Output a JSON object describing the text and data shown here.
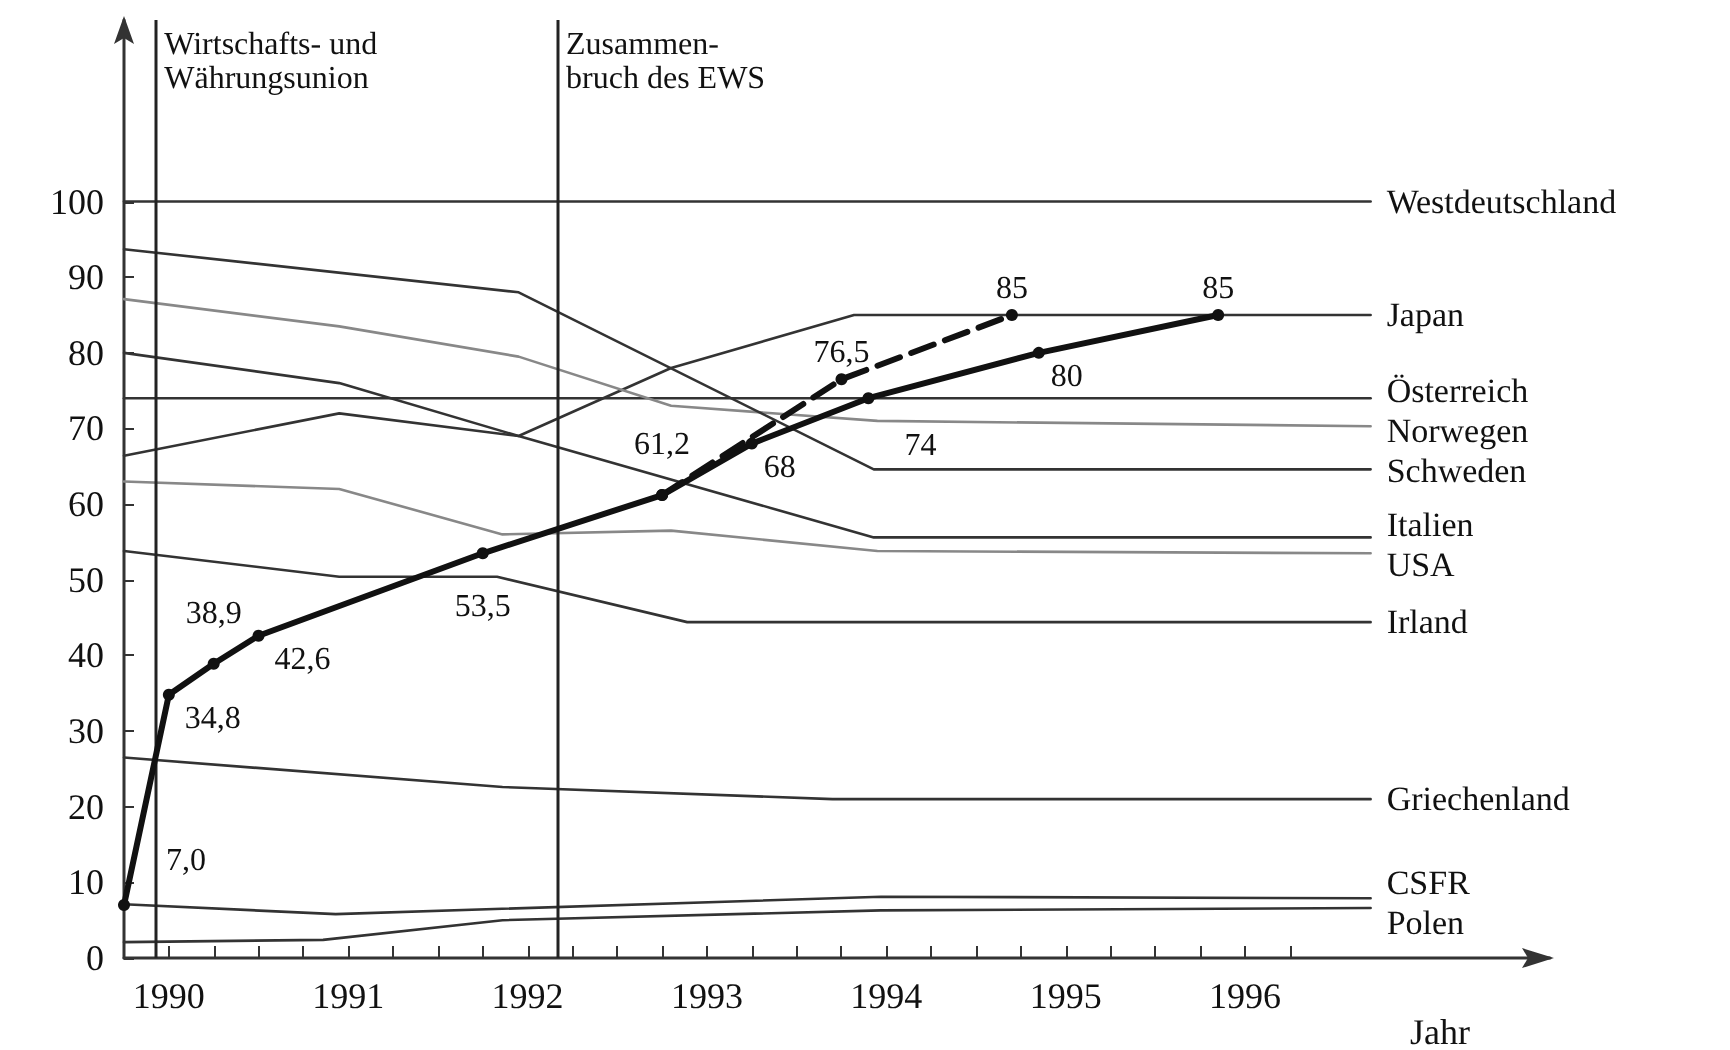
{
  "chart_data": {
    "type": "line",
    "xlabel": "Jahr",
    "xlim": [
      1990.25,
      1998.2
    ],
    "ylim": [
      0,
      124
    ],
    "yticks": [
      0,
      10,
      20,
      30,
      40,
      50,
      60,
      70,
      80,
      90,
      100
    ],
    "xticks": [
      {
        "value": 1990.5,
        "label": "1990"
      },
      {
        "value": 1990.75,
        "label": null
      },
      {
        "value": 1991,
        "label": null
      },
      {
        "value": 1991.25,
        "label": null
      },
      {
        "value": 1991.5,
        "label": "1991"
      },
      {
        "value": 1991.75,
        "label": null
      },
      {
        "value": 1992,
        "label": null
      },
      {
        "value": 1992.25,
        "label": null
      },
      {
        "value": 1992.5,
        "label": "1992"
      },
      {
        "value": 1992.75,
        "label": null
      },
      {
        "value": 1993,
        "label": null
      },
      {
        "value": 1993.25,
        "label": null
      },
      {
        "value": 1993.5,
        "label": "1993"
      },
      {
        "value": 1993.75,
        "label": null
      },
      {
        "value": 1994,
        "label": null
      },
      {
        "value": 1994.25,
        "label": null
      },
      {
        "value": 1994.5,
        "label": "1994"
      },
      {
        "value": 1994.75,
        "label": null
      },
      {
        "value": 1995,
        "label": null
      },
      {
        "value": 1995.25,
        "label": null
      },
      {
        "value": 1995.5,
        "label": "1995"
      },
      {
        "value": 1995.75,
        "label": null
      },
      {
        "value": 1996,
        "label": null
      },
      {
        "value": 1996.25,
        "label": null
      },
      {
        "value": 1996.5,
        "label": "1996"
      },
      {
        "value": 1996.75,
        "label": null
      }
    ],
    "ref_lines": [
      {
        "axis": "x",
        "value": 1990.43,
        "label": "Wirtschafts- und\nWährungsunion",
        "color": "#222222"
      },
      {
        "axis": "x",
        "value": 1992.67,
        "label": "Zusammen-\nbruch des EWS",
        "color": "#222222"
      }
    ],
    "grid": false,
    "legend": false,
    "marker": "none",
    "line_style": "solid",
    "series": [
      {
        "name": "Westdeutschland",
        "color": "#333333",
        "x": [
          1990.25,
          1997.2
        ],
        "values": [
          100,
          100
        ]
      },
      {
        "name": "Japan",
        "color": "#333333",
        "x": [
          1990.25,
          1991.45,
          1992.45,
          1993.3,
          1994.32,
          1997.2
        ],
        "values": [
          66.4,
          72,
          69,
          78,
          85,
          85
        ]
      },
      {
        "name": "Österreich",
        "color": "#333333",
        "x": [
          1990.25,
          1997.2
        ],
        "values": [
          74,
          74
        ]
      },
      {
        "name": "Norwegen",
        "color": "#888888",
        "x": [
          1990.25,
          1991.45,
          1992.45,
          1993.3,
          1994.45,
          1997.2
        ],
        "values": [
          87.1,
          83.5,
          79.5,
          73,
          71,
          70.3
        ]
      },
      {
        "name": "Schweden",
        "color": "#333333",
        "x": [
          1990.25,
          1992.45,
          1994.43,
          1997.2
        ],
        "values": [
          93.7,
          88,
          64.6,
          64.6
        ]
      },
      {
        "name": "Italien",
        "color": "#333333",
        "x": [
          1990.25,
          1991.45,
          1992.45,
          1994.43,
          1997.2
        ],
        "values": [
          80,
          76,
          69,
          55.6,
          55.6
        ]
      },
      {
        "name": "USA",
        "color": "#888888",
        "x": [
          1990.25,
          1991.45,
          1992.36,
          1993.3,
          1994.45,
          1997.2
        ],
        "values": [
          63,
          62,
          56,
          56.5,
          53.8,
          53.5
        ]
      },
      {
        "name": "Irland",
        "color": "#333333",
        "x": [
          1990.25,
          1991.45,
          1992.33,
          1993.39,
          1997.2
        ],
        "values": [
          53.8,
          50.4,
          50.4,
          44.4,
          44.4
        ]
      },
      {
        "name": "Griechenland",
        "color": "#333333",
        "x": [
          1990.25,
          1992.36,
          1994.2,
          1997.2
        ],
        "values": [
          26.5,
          22.6,
          21,
          21
        ]
      },
      {
        "name": "CSFR",
        "color": "#333333",
        "x": [
          1990.25,
          1991.43,
          1994.47,
          1997.2
        ],
        "values": [
          7.1,
          5.8,
          8.1,
          7.9
        ]
      },
      {
        "name": "Polen",
        "color": "#333333",
        "x": [
          1990.25,
          1991.36,
          1992.36,
          1994.47,
          1997.2
        ],
        "values": [
          2.1,
          2.4,
          5,
          6.3,
          6.6
        ]
      },
      {
        "color": "#111111",
        "marker": "circle",
        "x": [
          1990.25,
          1990.5,
          1990.75,
          1991,
          1992.25,
          1993.25,
          1993.75,
          1994.4,
          1995.35,
          1996.35
        ],
        "values": [
          7.0,
          34.8,
          38.9,
          42.6,
          53.5,
          61.2,
          68,
          74,
          80,
          85
        ],
        "value_labels": [
          "7,0",
          "34,8",
          "38,9",
          "42,6",
          "53,5",
          "61,2",
          "68",
          "74",
          "80",
          "85"
        ]
      },
      {
        "color": "#111111",
        "marker": "circle",
        "line_style": "dashed",
        "x": [
          1993.25,
          1994.25,
          1995.2
        ],
        "values": [
          61.2,
          76.5,
          85
        ],
        "value_labels": [
          null,
          "76,5",
          "85"
        ]
      }
    ]
  }
}
